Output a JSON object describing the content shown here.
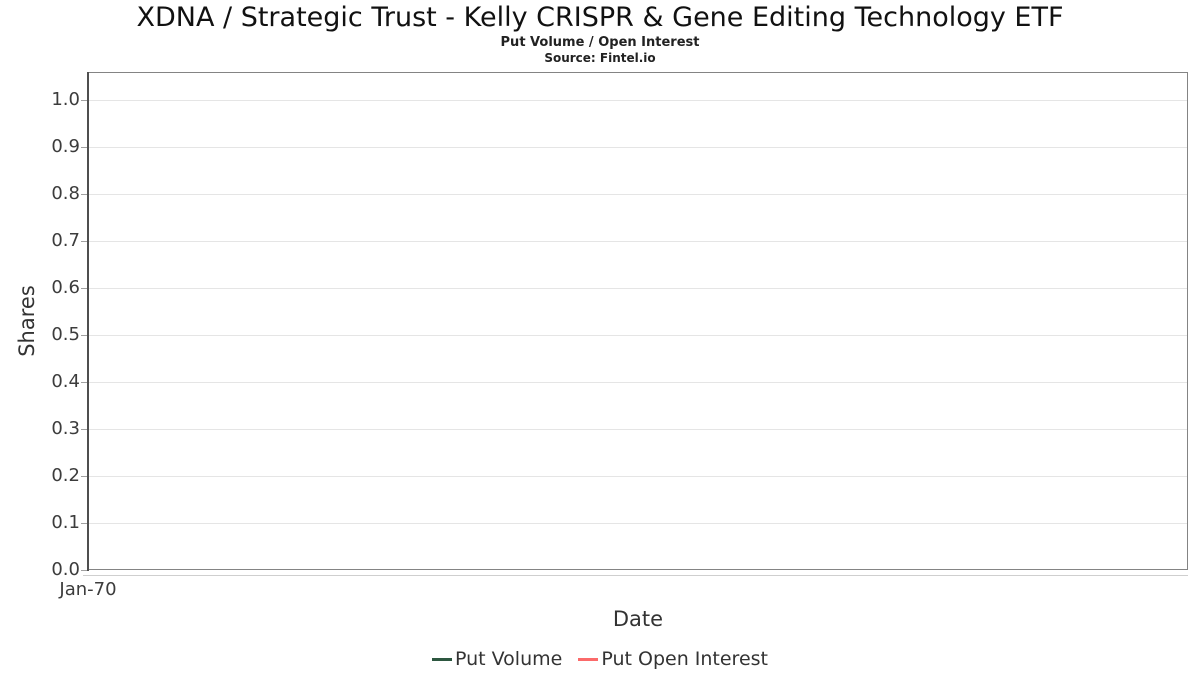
{
  "chart_data": {
    "type": "line",
    "title": "XDNA / Strategic Trust - Kelly CRISPR & Gene Editing Technology ETF",
    "subtitle": "Put Volume / Open Interest",
    "source": "Source: Fintel.io",
    "xlabel": "Date",
    "ylabel": "Shares",
    "x_ticks": [
      "Jan-70"
    ],
    "y_ticks": [
      0.0,
      0.1,
      0.2,
      0.3,
      0.4,
      0.5,
      0.6,
      0.7,
      0.8,
      0.9,
      1.0
    ],
    "ylim": [
      0,
      1.06
    ],
    "grid": "horizontal",
    "legend_position": "bottom-center",
    "series": [
      {
        "name": "Put Volume",
        "color": "#2d5740",
        "x": [],
        "values": []
      },
      {
        "name": "Put Open Interest",
        "color": "#fb6a6a",
        "x": [],
        "values": []
      }
    ]
  },
  "colors": {
    "background": "#ffffff",
    "grid": "#e5e5e5",
    "plot_border": "#848484",
    "y_axis_line": "#4f4f4f",
    "x_axis_line": "#cfcfcf",
    "tick_mark": "#a0a0a0",
    "title_text": "#111111",
    "label_text": "#333333",
    "put_volume": "#2d5740",
    "put_open_interest": "#fb6a6a"
  }
}
